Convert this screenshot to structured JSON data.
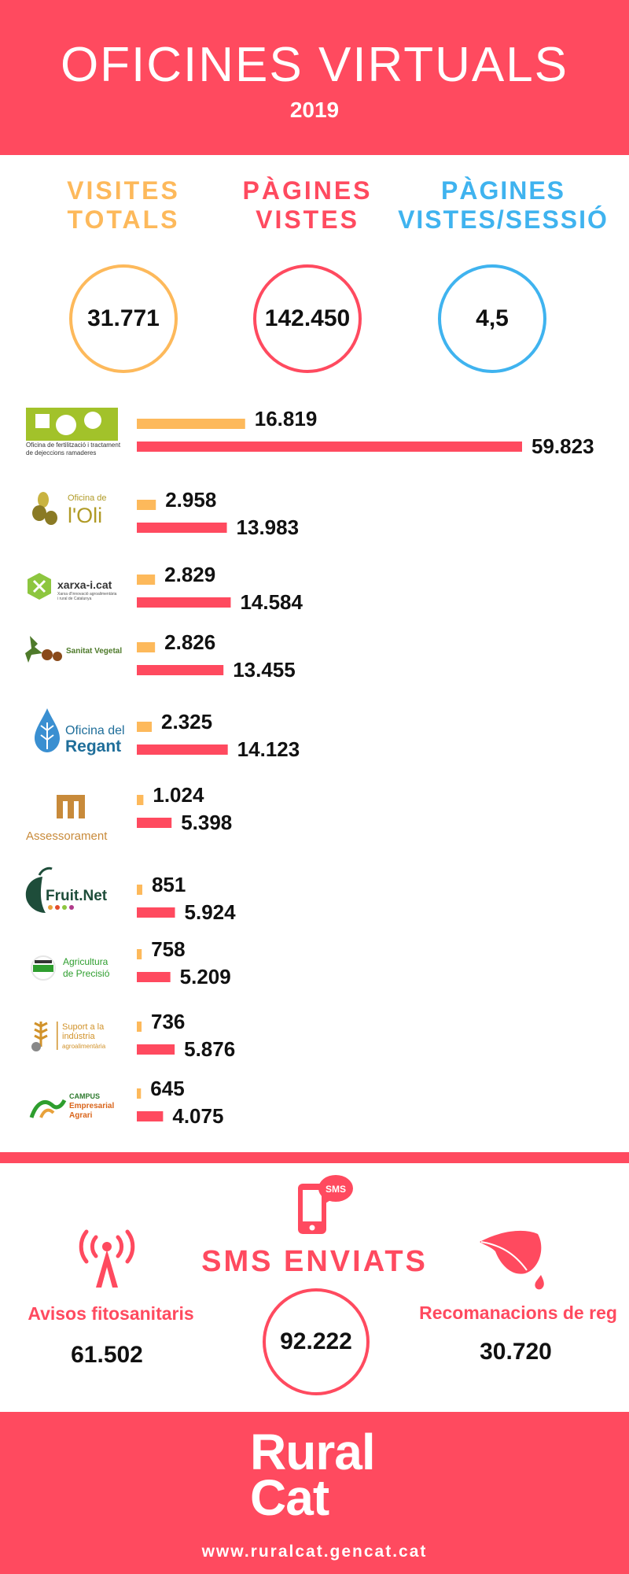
{
  "header": {
    "title": "OFICINES VIRTUALS",
    "year": "2019"
  },
  "kpis": [
    {
      "line1": "VISITES",
      "line2": "TOTALS",
      "value": "31.771",
      "color": "#fdb95b"
    },
    {
      "line1": "PÀGINES",
      "line2": "VISTES",
      "value": "142.450",
      "color": "#ff4a5f"
    },
    {
      "line1": "PÀGINES",
      "line2": "VISTES/SESSIÓ",
      "value": "4,5",
      "color": "#3fb3ef"
    }
  ],
  "chart_data": {
    "type": "bar",
    "orientation": "horizontal",
    "categories": [
      "Oficina de fertilització i tractament de dejeccions ramaderes",
      "Oficina de l'Oli",
      "xarxa-i.cat",
      "Sanitat Vegetal",
      "Oficina del Regant",
      "Assessorament",
      "Fruit.Net",
      "Agricultura de Precisió",
      "Suport a la indústria agroalimentària",
      "CAMPUS Empresarial Agrari"
    ],
    "series": [
      {
        "color": "#fdb95b",
        "values": [
          16819,
          2958,
          2829,
          2826,
          2325,
          1024,
          851,
          758,
          736,
          645
        ]
      },
      {
        "color": "#ff4a5f",
        "values": [
          59823,
          13983,
          14584,
          13455,
          14123,
          5398,
          5924,
          5209,
          5876,
          4075
        ]
      }
    ],
    "labels": [
      [
        "16.819",
        "2.958",
        "2.829",
        "2.826",
        "2.325",
        "1.024",
        "851",
        "758",
        "736",
        "645"
      ],
      [
        "59.823",
        "13.983",
        "14.584",
        "13.455",
        "14.123",
        "5.398",
        "5.924",
        "5.209",
        "5.876",
        "4.075"
      ]
    ]
  },
  "logos": [
    {
      "icon": "fertilitzacio-logo",
      "lines": [
        "Oficina de fertilització i tractament",
        "de dejeccions ramaderes"
      ]
    },
    {
      "icon": "olive-logo",
      "lines": [
        "Oficina de",
        "l'Oli"
      ]
    },
    {
      "icon": "xarxa-logo",
      "lines": [
        "xarxa-i.cat",
        "Xarxa d'Innovació agroalimentària",
        "i rural de Catalunya"
      ]
    },
    {
      "icon": "sanitat-logo",
      "lines": [
        "Sanitat Vegetal"
      ]
    },
    {
      "icon": "water-drop-logo",
      "lines": [
        "Oficina del",
        "Regant"
      ]
    },
    {
      "icon": "assessorament-logo",
      "lines": [
        "Assessorament"
      ]
    },
    {
      "icon": "fruitnet-logo",
      "lines": [
        "Fruit.Net"
      ]
    },
    {
      "icon": "drone-logo",
      "lines": [
        "Agricultura",
        "de Precisió"
      ]
    },
    {
      "icon": "wheat-logo",
      "lines": [
        "Suport a la",
        "indústria",
        "agroalimentària"
      ]
    },
    {
      "icon": "campus-logo",
      "lines": [
        "CAMPUS",
        "Empresarial",
        "Agrari"
      ]
    }
  ],
  "sms": {
    "badge": "SMS",
    "title": "SMS ENVIATS",
    "total": "92.222",
    "left_label": "Avisos fitosanitaris",
    "left_value": "61.502",
    "right_label": "Recomanacions de reg",
    "right_value": "30.720"
  },
  "footer": {
    "brand_line1": "Rural",
    "brand_line2": "Cat",
    "url": "www.ruralcat.gencat.cat"
  },
  "colors": {
    "accent": "#ff4a5f",
    "yellow": "#fdb95b",
    "blue": "#3fb3ef"
  }
}
